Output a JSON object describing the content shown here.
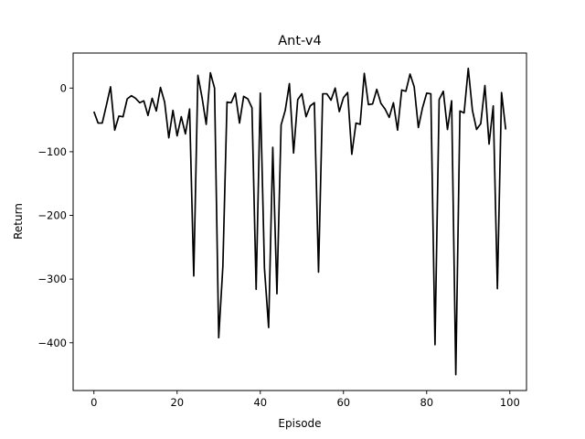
{
  "chart_data": {
    "type": "line",
    "title": "Ant-v4",
    "xlabel": "Episode",
    "ylabel": "Return",
    "xlim": [
      -5,
      104
    ],
    "ylim": [
      -475,
      55
    ],
    "xticks": [
      0,
      20,
      40,
      60,
      80,
      100
    ],
    "xtick_labels": [
      "0",
      "20",
      "40",
      "60",
      "80",
      "100"
    ],
    "yticks": [
      0,
      -100,
      -200,
      -300,
      -400
    ],
    "ytick_labels": [
      "0",
      "−100",
      "−200",
      "−300",
      "−400"
    ],
    "grid": false,
    "series": [
      {
        "color": "#000000",
        "x": [
          0,
          1,
          2,
          3,
          4,
          5,
          6,
          7,
          8,
          9,
          10,
          11,
          12,
          13,
          14,
          15,
          16,
          17,
          18,
          19,
          20,
          21,
          22,
          23,
          24,
          25,
          26,
          27,
          28,
          29,
          30,
          31,
          32,
          33,
          34,
          35,
          36,
          37,
          38,
          39,
          40,
          41,
          42,
          43,
          44,
          45,
          46,
          47,
          48,
          49,
          50,
          51,
          52,
          53,
          54,
          55,
          56,
          57,
          58,
          59,
          60,
          61,
          62,
          63,
          64,
          65,
          66,
          67,
          68,
          69,
          70,
          71,
          72,
          73,
          74,
          75,
          76,
          77,
          78,
          79,
          80,
          81,
          82,
          83,
          84,
          85,
          86,
          87,
          88,
          89,
          90,
          91,
          92,
          93,
          94,
          95,
          96,
          97,
          98,
          99
        ],
        "values": [
          -37,
          -55,
          -55,
          -27,
          2,
          -66,
          -44,
          -45,
          -17,
          -12,
          -16,
          -23,
          -20,
          -43,
          -16,
          -36,
          1,
          -22,
          -78,
          -35,
          -75,
          -45,
          -72,
          -33,
          -295,
          20,
          -15,
          -57,
          24,
          0,
          -392,
          -280,
          -22,
          -23,
          -8,
          -55,
          -13,
          -17,
          -31,
          -316,
          -8,
          -283,
          -376,
          -93,
          -323,
          -58,
          -35,
          7,
          -102,
          -18,
          -9,
          -45,
          -28,
          -23,
          -289,
          -9,
          -9,
          -19,
          0,
          -37,
          -15,
          -7,
          -104,
          -55,
          -57,
          23,
          -26,
          -25,
          -2,
          -24,
          -33,
          -46,
          -23,
          -66,
          -3,
          -5,
          22,
          2,
          -62,
          -31,
          -8,
          -9,
          -403,
          -18,
          -5,
          -65,
          -20,
          -450,
          -36,
          -39,
          31,
          -35,
          -65,
          -56,
          4,
          -88,
          -28,
          -315,
          -7,
          -65
        ]
      }
    ]
  }
}
